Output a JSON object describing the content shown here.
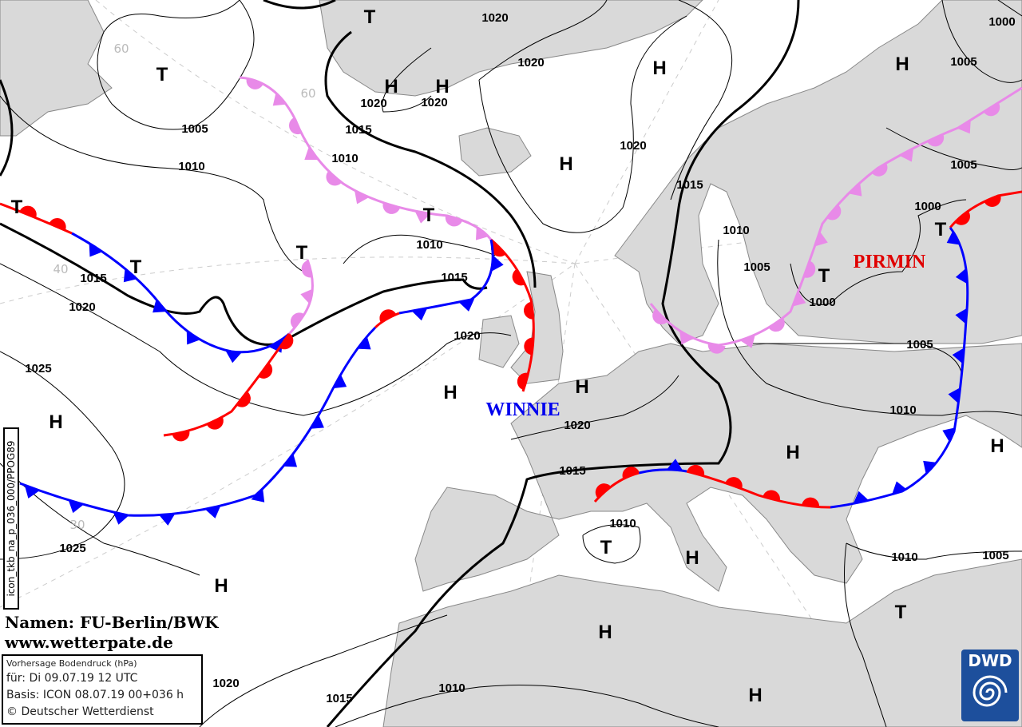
{
  "colors": {
    "land": "#d9d9d9",
    "sea": "#ffffff",
    "warm_front": "#ff0000",
    "cold_front": "#0000ff",
    "occlusion": "#e88ae8",
    "isobar": "#000000",
    "winnie": "#0000ee",
    "pirmin": "#e00000"
  },
  "pressure_centers": [
    "T",
    "T",
    "H",
    "H",
    "H",
    "H",
    "H",
    "T",
    "T",
    "T",
    "T",
    "H",
    "H",
    "H",
    "T",
    "T",
    "H",
    "H",
    "T",
    "H",
    "H",
    "H",
    "T",
    "H"
  ],
  "isobar_labels": [
    "1020",
    "1020",
    "1020",
    "1020",
    "1005",
    "1010",
    "1015",
    "1010",
    "1010",
    "1015",
    "1015",
    "1020",
    "1025",
    "1020",
    "1020",
    "1015",
    "1010",
    "1005",
    "1000",
    "1000",
    "1005",
    "1005",
    "1000",
    "1005",
    "1010",
    "1020",
    "1015",
    "1010",
    "1010",
    "1005",
    "1025",
    "1020",
    "1010",
    "1015"
  ],
  "latitude_labels": [
    "60",
    "60",
    "40",
    "30"
  ],
  "low_names": {
    "winnie": "WINNIE",
    "pirmin": "PIRMIN"
  },
  "credit": {
    "names": "Namen: FU-Berlin/BWK",
    "url": "www.wetterpate.de"
  },
  "info": {
    "title": "Vorhersage Bodendruck (hPa)",
    "valid": "für:  Di 09.07.19  12 UTC",
    "basis": "Basis: ICON  08.07.19 00+036 h",
    "copyright": "© Deutscher Wetterdienst"
  },
  "product_code": "icon_tkb_na_p_036_000/PPOG89",
  "logo": {
    "text": "DWD",
    "icon": "dwd-swirl-logo"
  }
}
